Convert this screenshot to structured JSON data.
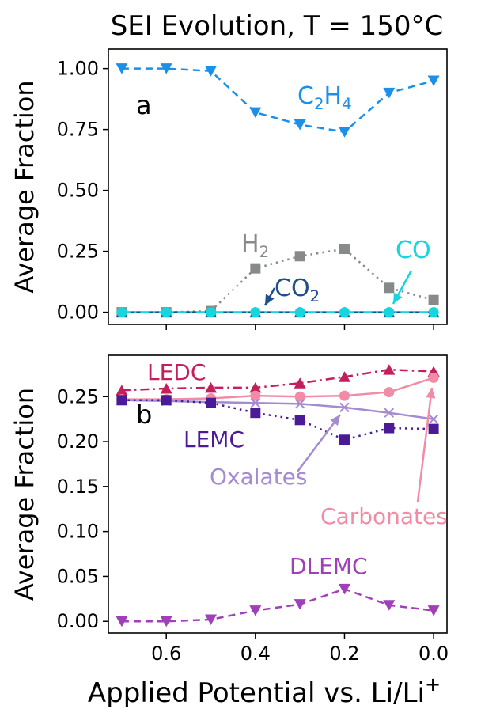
{
  "figure": {
    "title": "SEI Evolution, T = 150°C",
    "xlabel_main": "Applied Potential vs. Li/Li",
    "xlabel_sup": "+"
  },
  "chart_data": [
    {
      "type": "line",
      "panel_label": "a",
      "ylabel": "Average Fraction",
      "xlim": [
        0.73,
        -0.03
      ],
      "ylim": [
        -0.05,
        1.08
      ],
      "x_inverted": true,
      "xticks": [
        0.6,
        0.4,
        0.2,
        0.0
      ],
      "xtick_labels": [
        "0.6",
        "0.4",
        "0.2",
        "0.0"
      ],
      "xtick_labels_visible": false,
      "yticks": [
        0.0,
        0.25,
        0.5,
        0.75,
        1.0
      ],
      "ytick_labels": [
        "0.00",
        "0.25",
        "0.50",
        "0.75",
        "1.00"
      ],
      "grid": false,
      "x": [
        0.7,
        0.6,
        0.5,
        0.4,
        0.3,
        0.2,
        0.1,
        0.0
      ],
      "series": [
        {
          "name": "C2H4",
          "label_main": "C",
          "label_sub1": "2",
          "label_mid": "H",
          "label_sub2": "4",
          "color": "#1a90ea",
          "marker": "triangle-down",
          "linestyle": "dashed",
          "values": [
            1.0,
            1.0,
            0.99,
            0.82,
            0.77,
            0.74,
            0.9,
            0.95
          ]
        },
        {
          "name": "H2",
          "label_main": "H",
          "label_sub": "2",
          "color": "#868b89",
          "marker": "square",
          "linestyle": "dotted",
          "values": [
            0.0,
            0.0,
            0.005,
            0.18,
            0.23,
            0.26,
            0.1,
            0.05
          ]
        },
        {
          "name": "CO2",
          "label_main": "CO",
          "label_sub": "2",
          "color": "#1f4e8c",
          "marker": "triangle-up",
          "linestyle": "solid",
          "values": [
            0.0,
            0.0,
            0.0,
            0.0,
            0.0,
            0.0,
            0.0,
            0.0
          ]
        },
        {
          "name": "CO",
          "label_main": "CO",
          "color": "#14d6dc",
          "marker": "circle",
          "linestyle": "dashdot",
          "values": [
            0.0,
            0.0,
            0.0,
            0.0,
            0.0,
            0.0,
            0.0,
            0.0
          ]
        }
      ]
    },
    {
      "type": "line",
      "panel_label": "b",
      "ylabel": "Average Fraction",
      "xlim": [
        0.73,
        -0.03
      ],
      "ylim": [
        -0.013,
        0.296
      ],
      "x_inverted": true,
      "xticks": [
        0.6,
        0.4,
        0.2,
        0.0
      ],
      "xtick_labels": [
        "0.6",
        "0.4",
        "0.2",
        "0.0"
      ],
      "yticks": [
        0.0,
        0.05,
        0.1,
        0.15,
        0.2,
        0.25
      ],
      "ytick_labels": [
        "0.00",
        "0.05",
        "0.10",
        "0.15",
        "0.20",
        "0.25"
      ],
      "grid": false,
      "x": [
        0.7,
        0.6,
        0.5,
        0.4,
        0.3,
        0.2,
        0.1,
        0.0
      ],
      "series": [
        {
          "name": "LEDC",
          "color": "#c41e5c",
          "marker": "triangle-up",
          "linestyle": "dashdot",
          "values": [
            0.257,
            0.259,
            0.26,
            0.26,
            0.265,
            0.272,
            0.28,
            0.278
          ]
        },
        {
          "name": "Carbonates",
          "color": "#f28ba5",
          "marker": "circle",
          "linestyle": "solid",
          "values": [
            0.247,
            0.247,
            0.248,
            0.251,
            0.25,
            0.251,
            0.255,
            0.271
          ]
        },
        {
          "name": "Oxalates",
          "color": "#a58bd0",
          "marker": "x",
          "linestyle": "solid",
          "values": [
            0.246,
            0.245,
            0.244,
            0.243,
            0.242,
            0.238,
            0.232,
            0.225
          ]
        },
        {
          "name": "LEMC",
          "color": "#4b1a96",
          "marker": "square",
          "linestyle": "dotted",
          "values": [
            0.246,
            0.246,
            0.243,
            0.232,
            0.224,
            0.202,
            0.215,
            0.214
          ]
        },
        {
          "name": "DLEMC",
          "color": "#a040b8",
          "marker": "triangle-down",
          "linestyle": "dashed",
          "values": [
            0.0,
            0.0,
            0.002,
            0.012,
            0.019,
            0.036,
            0.018,
            0.012
          ]
        }
      ]
    }
  ]
}
